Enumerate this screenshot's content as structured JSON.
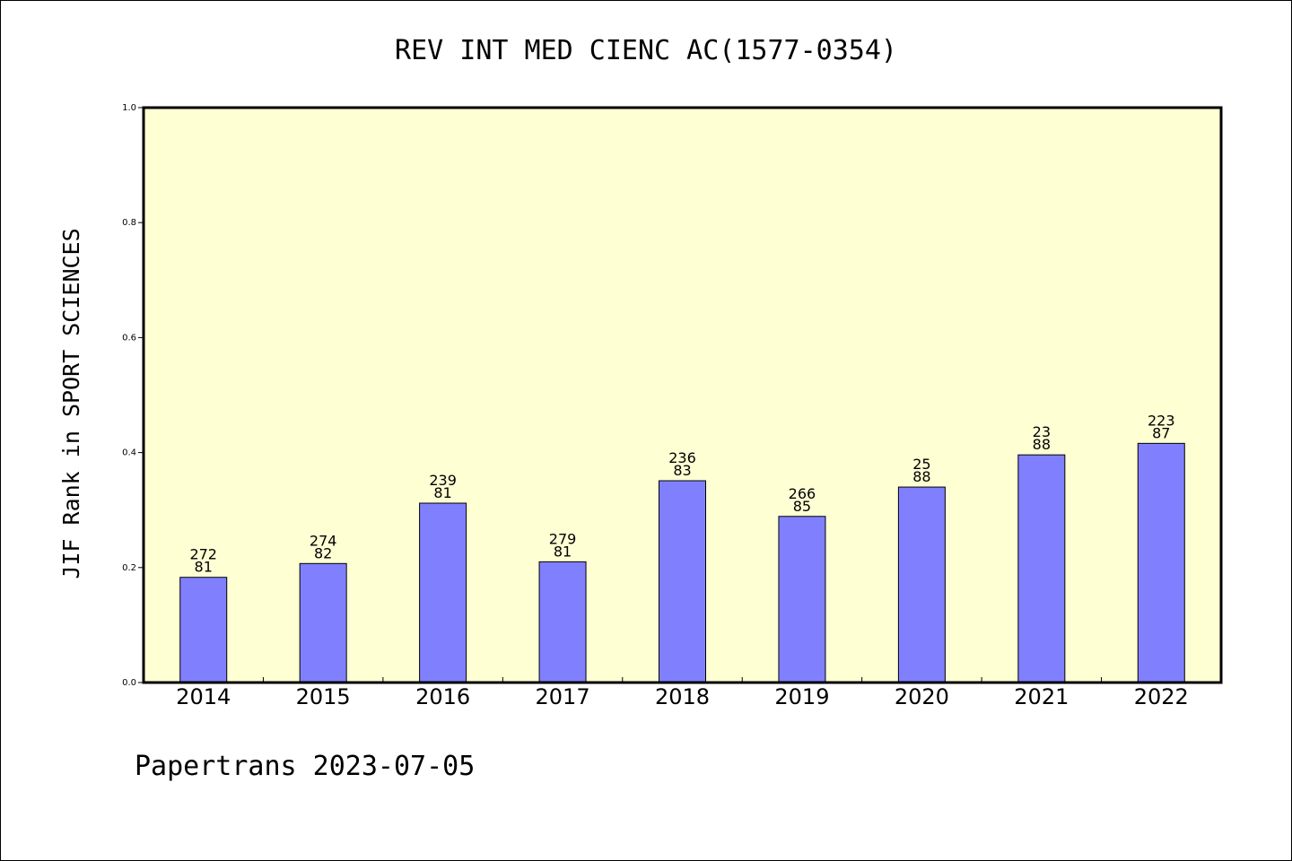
{
  "chart_data": {
    "type": "bar",
    "title": "REV INT MED CIENC AC(1577-0354)",
    "ylabel": "JIF Rank in SPORT SCIENCES",
    "xlabel": "",
    "ylim": [
      0,
      1.0
    ],
    "yticks": [
      "0.0",
      "0.2",
      "0.4",
      "0.6",
      "0.8",
      "1.0"
    ],
    "categories": [
      "2014",
      "2015",
      "2016",
      "2017",
      "2018",
      "2019",
      "2020",
      "2021",
      "2022"
    ],
    "values": [
      0.183,
      0.207,
      0.312,
      0.21,
      0.351,
      0.289,
      0.34,
      0.396,
      0.416
    ],
    "label_top": [
      "272",
      "274",
      "239",
      "279",
      "236",
      "266",
      "25",
      "23",
      "223"
    ],
    "label_bottom": [
      "81",
      "82",
      "81",
      "81",
      "83",
      "85",
      "88",
      "88",
      "87"
    ],
    "grid": false,
    "colors": {
      "plot_background": "#ffffd4",
      "bar_fill": "#8080ff",
      "bar_stroke": "#000000"
    }
  },
  "footer": {
    "text": "Papertrans 2023-07-05"
  }
}
